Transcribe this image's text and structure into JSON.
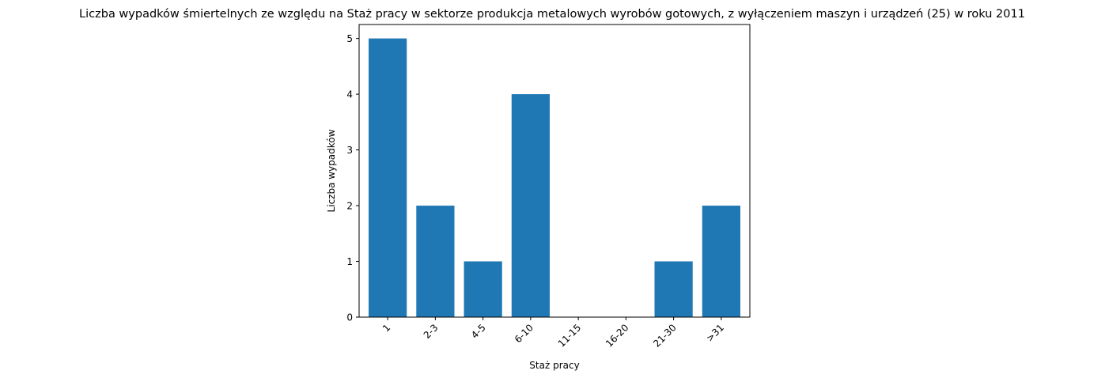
{
  "chart_data": {
    "type": "bar",
    "title": "Liczba wypadków śmiertelnych ze względu na Staż pracy w sektorze produkcja metalowych wyrobów gotowych, z wyłączeniem maszyn i urządzeń (25) w roku 2011",
    "xlabel": "Staż pracy",
    "ylabel": "Liczba wypadków",
    "categories": [
      "1",
      "2-3",
      "4-5",
      "6-10",
      "11-15",
      "16-20",
      "21-30",
      ">31"
    ],
    "values": [
      5,
      2,
      1,
      4,
      0,
      0,
      1,
      2
    ],
    "ylim": [
      0,
      5.25
    ],
    "yticks": [
      "0",
      "1",
      "2",
      "3",
      "4",
      "5"
    ],
    "bar_color": "#1f77b4",
    "grid": false,
    "xtick_rotation_deg": 45
  }
}
